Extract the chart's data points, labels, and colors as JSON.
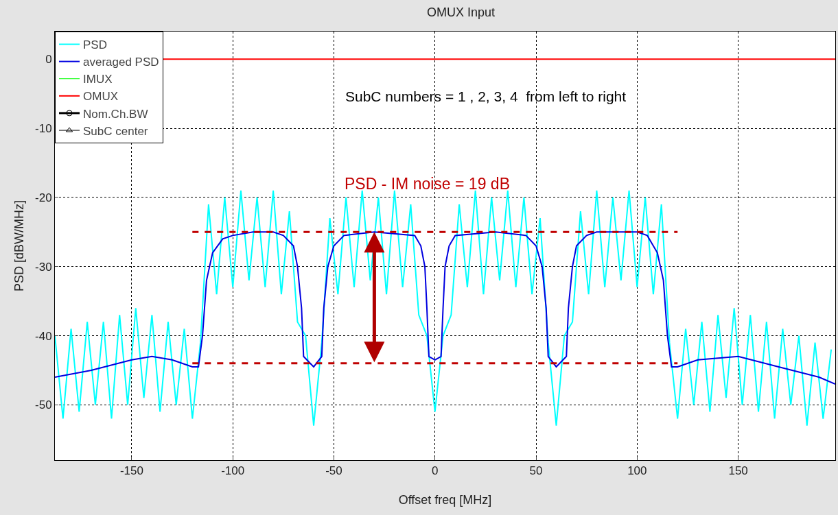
{
  "chart_data": {
    "type": "line",
    "title": "OMUX Input",
    "xlabel": "Offset freq [MHz]",
    "ylabel": "PSD [dBW/MHz]",
    "xlim": [
      -188,
      198
    ],
    "ylim": [
      -58,
      4
    ],
    "xticks": [
      -150,
      -100,
      -50,
      0,
      50,
      100,
      150
    ],
    "yticks": [
      -50,
      -40,
      -30,
      -20,
      -10,
      0
    ],
    "grid": true,
    "legend": "top left",
    "annotations": [
      "SubC numbers = 1 , 2, 3, 4  from left to right",
      {
        "text": "PSD - IM noise = 19 dB",
        "x": -30,
        "y": -25
      }
    ],
    "series": [
      {
        "name": "PSD",
        "color": "#00ffff",
        "x": [
          -188,
          -184,
          -180,
          -176,
          -172,
          -168,
          -164,
          -160,
          -156,
          -152,
          -148,
          -144,
          -140,
          -136,
          -132,
          -128,
          -124,
          -120,
          -116,
          -112,
          -108,
          -104,
          -100,
          -96,
          -92,
          -88,
          -84,
          -80,
          -76,
          -72,
          -68,
          -64,
          -60,
          -56,
          -52,
          -48,
          -44,
          -40,
          -36,
          -32,
          -28,
          -24,
          -20,
          -16,
          -12,
          -8,
          -4,
          0,
          4,
          8,
          12,
          16,
          20,
          24,
          28,
          32,
          36,
          40,
          44,
          48,
          52,
          56,
          60,
          64,
          68,
          72,
          76,
          80,
          84,
          88,
          92,
          96,
          100,
          104,
          108,
          112,
          116,
          120,
          124,
          128,
          132,
          136,
          140,
          144,
          148,
          152,
          156,
          160,
          164,
          168,
          172,
          176,
          180,
          184,
          188,
          192,
          196
        ],
        "values": [
          -40,
          -52,
          -39,
          -51,
          -38,
          -50,
          -38,
          -52,
          -37,
          -50,
          -36,
          -49,
          -37,
          -51,
          -38,
          -50,
          -39,
          -52,
          -41,
          -21,
          -34,
          -20,
          -33,
          -19,
          -32,
          -20,
          -33,
          -19,
          -34,
          -22,
          -38,
          -40,
          -53,
          -41,
          -23,
          -34,
          -20,
          -33,
          -19,
          -32,
          -20,
          -34,
          -19,
          -33,
          -21,
          -37,
          -40,
          -51,
          -40,
          -37,
          -21,
          -33,
          -19,
          -34,
          -20,
          -32,
          -19,
          -33,
          -20,
          -34,
          -23,
          -41,
          -53,
          -40,
          -38,
          -22,
          -34,
          -19,
          -33,
          -20,
          -32,
          -19,
          -33,
          -20,
          -34,
          -21,
          -41,
          -52,
          -39,
          -50,
          -38,
          -51,
          -37,
          -49,
          -36,
          -50,
          -37,
          -51,
          -38,
          -52,
          -39,
          -50,
          -40,
          -53,
          -41,
          -52,
          -42
        ]
      },
      {
        "name": "averaged PSD",
        "color": "#0000e0",
        "x": [
          -188,
          -170,
          -150,
          -140,
          -130,
          -120,
          -117,
          -115,
          -113,
          -110,
          -105,
          -100,
          -90,
          -80,
          -75,
          -70,
          -68,
          -66,
          -65,
          -60,
          -56,
          -55,
          -53,
          -50,
          -45,
          -30,
          -10,
          -7,
          -5,
          -4,
          -3,
          0,
          3,
          4,
          5,
          7,
          10,
          30,
          45,
          50,
          53,
          55,
          56,
          60,
          65,
          66,
          68,
          70,
          75,
          80,
          90,
          100,
          105,
          110,
          113,
          115,
          117,
          120,
          130,
          150,
          170,
          190,
          198
        ],
        "values": [
          -46,
          -45,
          -43.5,
          -43,
          -43.5,
          -44.5,
          -44.5,
          -40,
          -32,
          -28,
          -26,
          -25.5,
          -25,
          -25,
          -25.5,
          -27,
          -30,
          -36,
          -43,
          -44.5,
          -43,
          -36,
          -30,
          -27,
          -25.5,
          -25,
          -25.5,
          -27,
          -30,
          -36,
          -43,
          -43.5,
          -43,
          -36,
          -30,
          -27,
          -25.5,
          -25,
          -25.5,
          -27,
          -30,
          -36,
          -43,
          -44.5,
          -43,
          -36,
          -30,
          -27,
          -25.5,
          -25,
          -25,
          -25,
          -25.5,
          -28,
          -32,
          -40,
          -44.5,
          -44.5,
          -43.5,
          -43,
          -44.5,
          -46,
          -47
        ]
      },
      {
        "name": "IMUX",
        "color": "#00ff00",
        "values": [
          null
        ]
      },
      {
        "name": "OMUX",
        "color": "#ff0000",
        "x": [
          -188,
          198
        ],
        "values": [
          0,
          0
        ]
      },
      {
        "name": "Nom.Ch.BW",
        "color": "#000000",
        "marker": "circle",
        "values": [
          null
        ]
      },
      {
        "name": "SubC center",
        "color": "#000000",
        "marker": "triangle",
        "values": [
          null
        ]
      },
      {
        "color": "#c00000",
        "line_style": "dashed",
        "x": [
          -120,
          120
        ],
        "values": [
          -25,
          -25
        ]
      },
      {
        "color": "#c00000",
        "line_style": "dashed",
        "x": [
          -120,
          120
        ],
        "values": [
          -44,
          -44
        ]
      }
    ]
  }
}
